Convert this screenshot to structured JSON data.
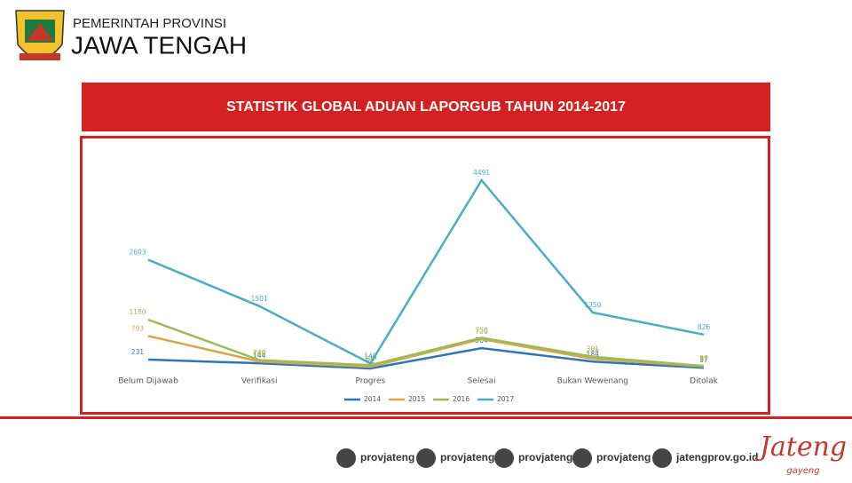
{
  "header": {
    "line1": "PEMERINTAH PROVINSI",
    "line2": "JAWA TENGAH"
  },
  "chart_data": {
    "type": "line",
    "title": "STATISTIK GLOBAL ADUAN LAPORGUB TAHUN 2014-2017",
    "categories": [
      "Belum Dijawab",
      "Verifikasi",
      "Progres",
      "Selesai",
      "Bukan Wewenang",
      "Ditolak"
    ],
    "series": [
      {
        "name": "2014",
        "color": "#2e75b6",
        "values": [
          231,
          144,
          22,
          504,
          184,
          37
        ]
      },
      {
        "name": "2015",
        "color": "#d4a84b",
        "values": [
          793,
          188,
          60,
          720,
          250,
          67
        ]
      },
      {
        "name": "2016",
        "color": "#9bbb59",
        "values": [
          1180,
          220,
          100,
          750,
          301,
          80
        ]
      },
      {
        "name": "2017",
        "color": "#4bacc6",
        "values": [
          2603,
          1501,
          140,
          4491,
          1350,
          826
        ]
      }
    ]
  },
  "footer": {
    "handles": [
      "provjateng",
      "provjateng",
      "provjateng",
      "provjateng",
      "jatengprov.go.id"
    ],
    "logo": "Jateng",
    "logo_sub": "gayeng"
  }
}
